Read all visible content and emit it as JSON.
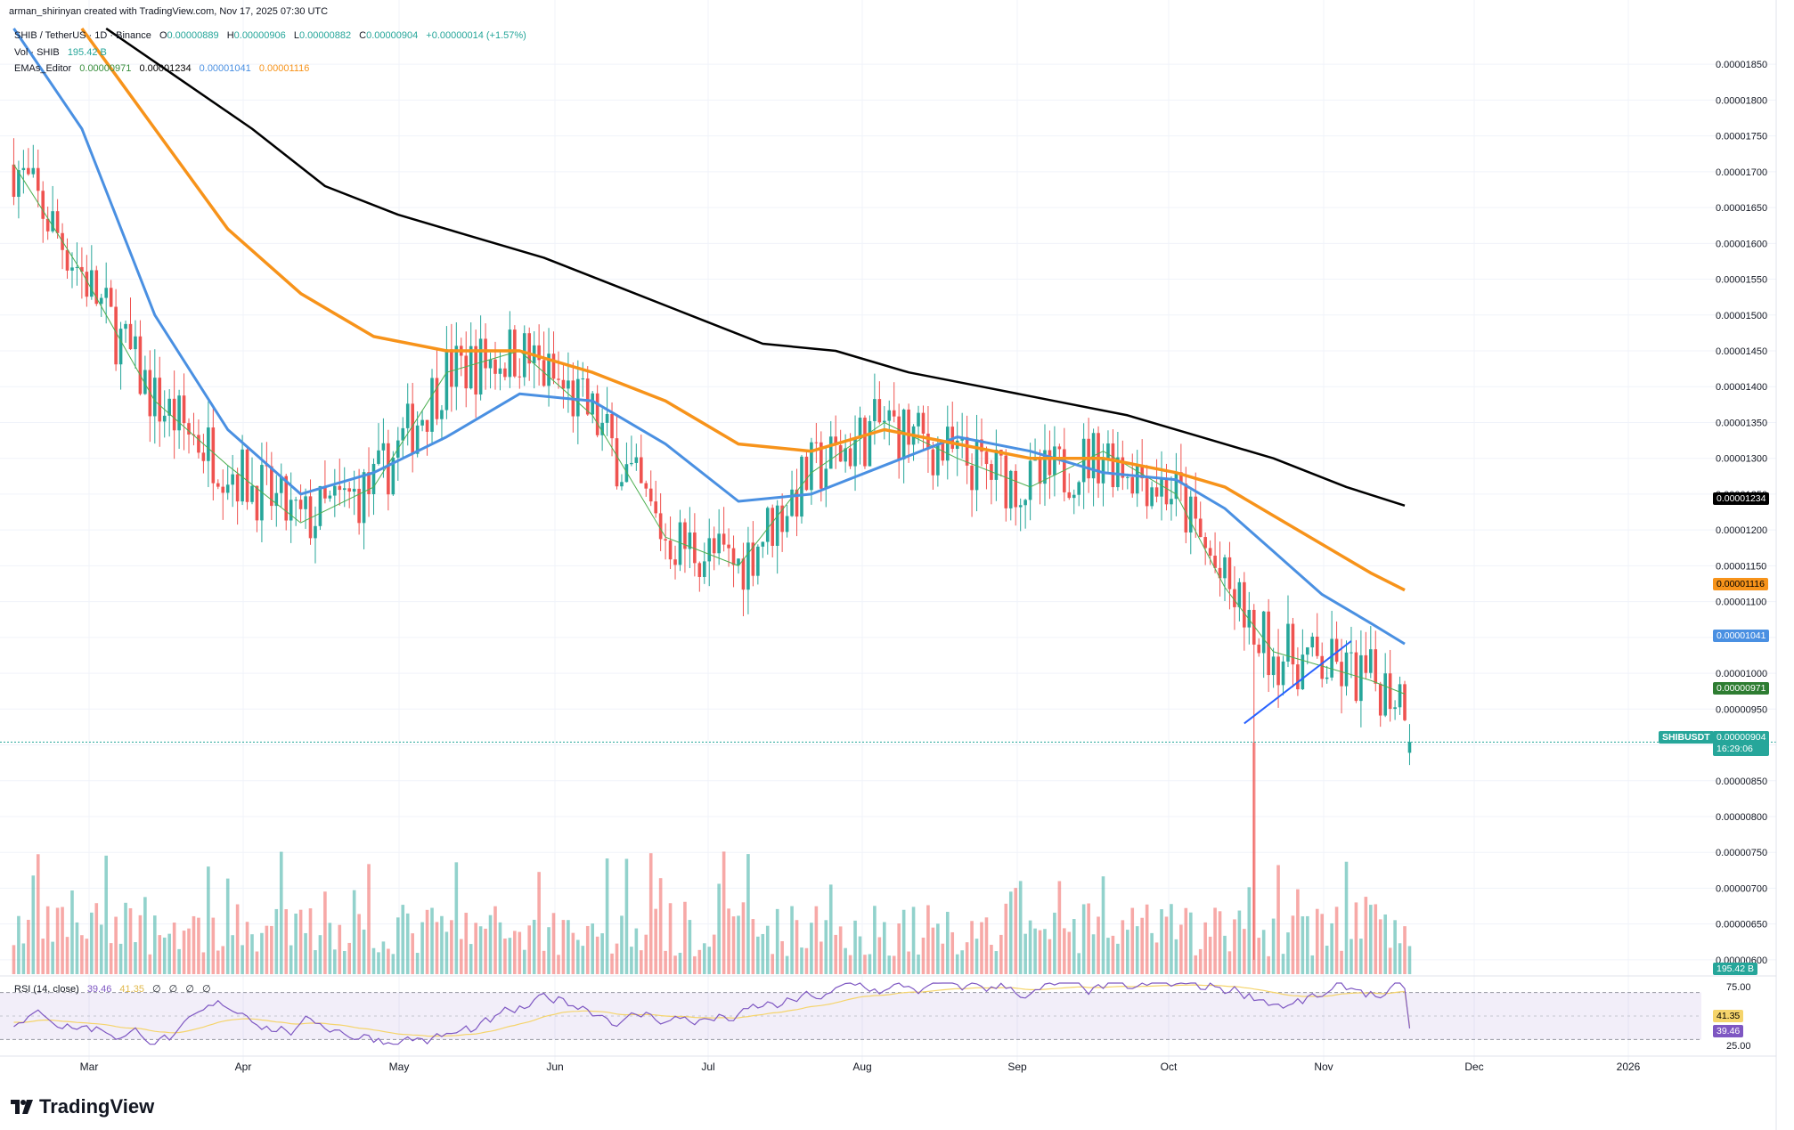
{
  "author_line": "arman_shirinyan created with TradingView.com, Nov 17, 2025 07:30 UTC",
  "symbol_line": {
    "symbol": "SHIB / TetherUS · 1D · Binance",
    "open_label": "O",
    "open": "0.00000889",
    "high_label": "H",
    "high": "0.00000906",
    "low_label": "L",
    "low": "0.00000882",
    "close_label": "C",
    "close": "0.00000904",
    "change": "+0.00000014 (+1.57%)"
  },
  "vol_line": {
    "label": "Vol · SHIB",
    "value": "195.42 B"
  },
  "ema_line": {
    "label": "EMAs_Editor",
    "values": [
      "0.00000971",
      "0.00001234",
      "0.00001041",
      "0.00001116"
    ]
  },
  "rsi_line": {
    "label": "RSI (14, close)",
    "rsi": "39.46",
    "ma": "41.35",
    "extras": [
      "∅",
      "∅",
      "∅",
      "∅"
    ]
  },
  "price_labels": {
    "ema200": "0.00001234",
    "ema100": "0.00001116",
    "ema50": "0.00001041",
    "ema20": "0.00000971",
    "symbol_tag": "SHIBUSDT",
    "last": "0.00000904",
    "countdown": "16:29:06",
    "volume": "195.42 B",
    "rsi_ma": "41.35",
    "rsi": "39.46"
  },
  "brand": "TradingView",
  "colors": {
    "up": "#26a69a",
    "down": "#ef5350",
    "ema20": "#4caf50",
    "ema50": "#4a90e2",
    "ema100": "#f7931a",
    "ema200": "#000000",
    "rsi": "#7e57c2",
    "rsi_ma": "#f5d46b",
    "trendline": "#2962ff"
  },
  "chart_data": {
    "type": "candlestick",
    "timeframe": "1D",
    "y_axis": {
      "ticks": [
        "0.00001850",
        "0.00001800",
        "0.00001750",
        "0.00001700",
        "0.00001650",
        "0.00001600",
        "0.00001550",
        "0.00001500",
        "0.00001450",
        "0.00001400",
        "0.00001350",
        "0.00001300",
        "0.00001250",
        "0.00001200",
        "0.00001150",
        "0.00001100",
        "0.00001050",
        "0.00001000",
        "0.00000950",
        "0.00000900",
        "0.00000850",
        "0.00000800",
        "0.00000750",
        "0.00000700",
        "0.00000650",
        "0.00000600"
      ],
      "ylim": [
        5.8e-06,
        1.89e-05
      ]
    },
    "x_axis": {
      "ticks": [
        "Mar",
        "Apr",
        "May",
        "Jun",
        "Jul",
        "Aug",
        "Sep",
        "Oct",
        "Nov",
        "Dec",
        "2026"
      ]
    },
    "ema_series": [
      {
        "name": "EMA 20",
        "color": "ema20",
        "last": 9.71e-06,
        "points": [
          [
            1,
            1.71e-05
          ],
          [
            15,
            1.56e-05
          ],
          [
            30,
            1.38e-05
          ],
          [
            45,
            1.29e-05
          ],
          [
            60,
            1.21e-05
          ],
          [
            75,
            1.26e-05
          ],
          [
            90,
            1.42e-05
          ],
          [
            105,
            1.45e-05
          ],
          [
            120,
            1.36e-05
          ],
          [
            135,
            1.19e-05
          ],
          [
            150,
            1.15e-05
          ],
          [
            165,
            1.28e-05
          ],
          [
            180,
            1.35e-05
          ],
          [
            195,
            1.3e-05
          ],
          [
            210,
            1.26e-05
          ],
          [
            225,
            1.31e-05
          ],
          [
            240,
            1.25e-05
          ],
          [
            250,
            1.12e-05
          ],
          [
            260,
            1.03e-05
          ],
          [
            270,
            1.01e-05
          ],
          [
            280,
            9.9e-06
          ],
          [
            287,
            9.71e-06
          ]
        ]
      },
      {
        "name": "EMA 50",
        "color": "ema50",
        "last": 1.041e-05,
        "points": [
          [
            1,
            1.9e-05
          ],
          [
            15,
            1.76e-05
          ],
          [
            30,
            1.5e-05
          ],
          [
            45,
            1.34e-05
          ],
          [
            60,
            1.25e-05
          ],
          [
            75,
            1.28e-05
          ],
          [
            90,
            1.33e-05
          ],
          [
            105,
            1.39e-05
          ],
          [
            120,
            1.38e-05
          ],
          [
            135,
            1.32e-05
          ],
          [
            150,
            1.24e-05
          ],
          [
            165,
            1.25e-05
          ],
          [
            180,
            1.29e-05
          ],
          [
            195,
            1.33e-05
          ],
          [
            210,
            1.31e-05
          ],
          [
            225,
            1.28e-05
          ],
          [
            240,
            1.27e-05
          ],
          [
            250,
            1.23e-05
          ],
          [
            260,
            1.17e-05
          ],
          [
            270,
            1.11e-05
          ],
          [
            280,
            1.07e-05
          ],
          [
            287,
            1.041e-05
          ]
        ]
      },
      {
        "name": "EMA 100",
        "color": "ema100",
        "last": 1.116e-05,
        "points": [
          [
            15,
            1.9e-05
          ],
          [
            30,
            1.76e-05
          ],
          [
            45,
            1.62e-05
          ],
          [
            60,
            1.53e-05
          ],
          [
            75,
            1.47e-05
          ],
          [
            90,
            1.45e-05
          ],
          [
            105,
            1.45e-05
          ],
          [
            120,
            1.42e-05
          ],
          [
            135,
            1.38e-05
          ],
          [
            150,
            1.32e-05
          ],
          [
            165,
            1.31e-05
          ],
          [
            180,
            1.34e-05
          ],
          [
            195,
            1.32e-05
          ],
          [
            210,
            1.3e-05
          ],
          [
            225,
            1.3e-05
          ],
          [
            240,
            1.28e-05
          ],
          [
            250,
            1.26e-05
          ],
          [
            260,
            1.22e-05
          ],
          [
            270,
            1.18e-05
          ],
          [
            280,
            1.14e-05
          ],
          [
            287,
            1.116e-05
          ]
        ]
      },
      {
        "name": "EMA 200",
        "color": "ema200",
        "last": 1.234e-05,
        "points": [
          [
            20,
            1.9e-05
          ],
          [
            35,
            1.83e-05
          ],
          [
            50,
            1.76e-05
          ],
          [
            65,
            1.68e-05
          ],
          [
            80,
            1.64e-05
          ],
          [
            95,
            1.61e-05
          ],
          [
            110,
            1.58e-05
          ],
          [
            125,
            1.54e-05
          ],
          [
            140,
            1.5e-05
          ],
          [
            155,
            1.46e-05
          ],
          [
            170,
            1.45e-05
          ],
          [
            185,
            1.42e-05
          ],
          [
            200,
            1.4e-05
          ],
          [
            215,
            1.38e-05
          ],
          [
            230,
            1.36e-05
          ],
          [
            245,
            1.33e-05
          ],
          [
            260,
            1.3e-05
          ],
          [
            275,
            1.26e-05
          ],
          [
            287,
            1.234e-05
          ]
        ]
      }
    ],
    "trendline": [
      [
        254,
        9.3e-06
      ],
      [
        276,
        1.045e-05
      ]
    ],
    "current_price": 9.04e-06,
    "rsi": {
      "ylim": [
        25,
        75
      ],
      "bands": [
        70,
        30
      ],
      "ticks": [
        "75.00",
        "25.00"
      ],
      "last": 39.46,
      "ma_last": 41.35
    }
  }
}
